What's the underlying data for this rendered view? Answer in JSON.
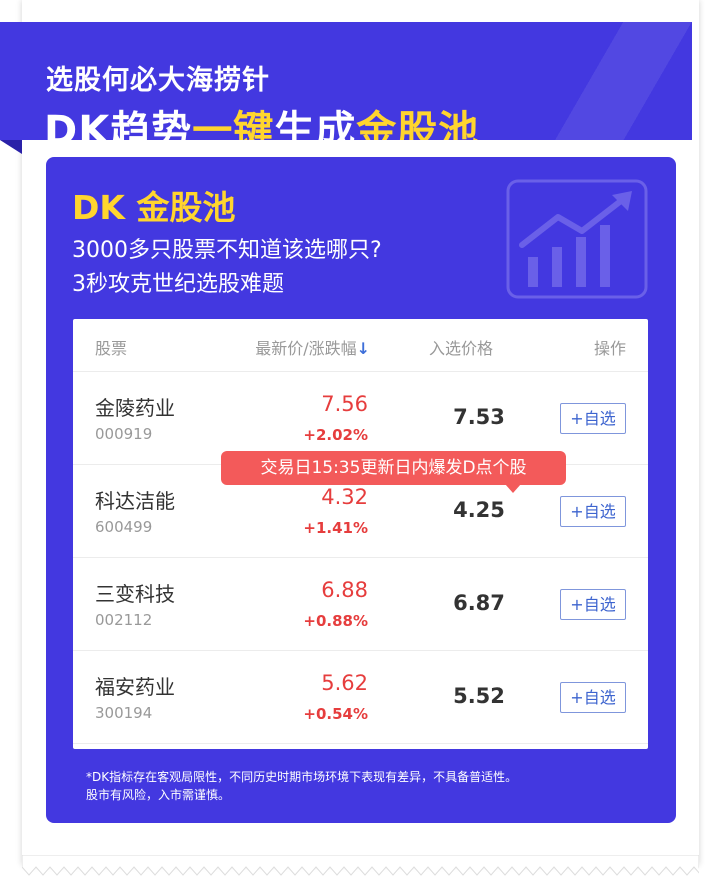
{
  "banner": {
    "line1": "选股何必大海捞针",
    "line2_part1": "DK趋势",
    "line2_highlight1": "一键",
    "line2_part2": "生成",
    "line2_highlight2": "金股池"
  },
  "card": {
    "title": "DK 金股池",
    "subtitle1": "3000多只股票不知道该选哪只?",
    "subtitle2": "3秒攻克世纪选股难题",
    "icon": "chart-trend-up-icon"
  },
  "table": {
    "headers": {
      "stock": "股票",
      "price": "最新价/涨跌幅",
      "sort_icon": "arrow-down-icon",
      "entry": "入选价格",
      "op": "操作"
    },
    "rows": [
      {
        "name": "金陵药业",
        "code": "000919",
        "price": "7.56",
        "change": "+2.02%",
        "entry": "7.53",
        "action": "+自选"
      },
      {
        "name": "科达洁能",
        "code": "600499",
        "price": "4.32",
        "change": "+1.41%",
        "entry": "4.25",
        "action": "+自选"
      },
      {
        "name": "三变科技",
        "code": "002112",
        "price": "6.88",
        "change": "+0.88%",
        "entry": "6.87",
        "action": "+自选"
      },
      {
        "name": "福安药业",
        "code": "300194",
        "price": "5.62",
        "change": "+0.54%",
        "entry": "5.52",
        "action": "+自选"
      }
    ]
  },
  "tooltip": "交易日15:35更新日内爆发D点个股",
  "disclaimer": {
    "line1": "*DK指标存在客观局限性，不同历史时期市场环境下表现有差异，不具备普适性。",
    "line2": "股市有风险，入市需谨慎。"
  },
  "colors": {
    "brand_blue": "#4338e0",
    "highlight_yellow": "#ffd52e",
    "rise_red": "#e63d3d",
    "tooltip_red": "#f35a5a"
  }
}
